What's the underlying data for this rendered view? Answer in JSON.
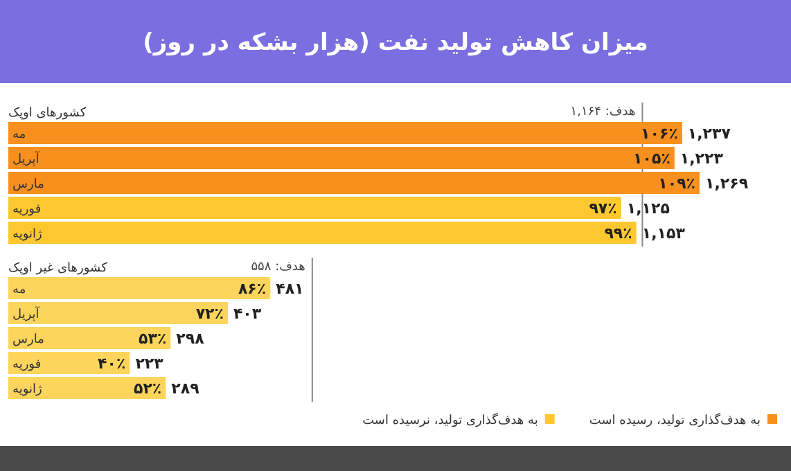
{
  "chart_data": [
    {
      "type": "bar",
      "orientation": "horizontal",
      "title": "میزان کاهش تولید نفت (هزار بشکه در روز)",
      "subtitle": "کشورهای اوپک",
      "categories": [
        "مه",
        "آپریل",
        "مارس",
        "فوریه",
        "ژانویه"
      ],
      "series": [
        {
          "name": "به هدف‌گذاری تولید، رسیده است",
          "color": "#f7901e",
          "values": [
            1237,
            1223,
            1269,
            null,
            null
          ],
          "value_labels": [
            "۱,۲۳۷",
            "۱,۲۲۳",
            "۱,۲۶۹",
            null,
            null
          ]
        },
        {
          "name": "به هدف‌گذاری تولید، نرسیده است",
          "color": "#fdc82f",
          "values": [
            null,
            null,
            null,
            1125,
            1153
          ],
          "value_labels": [
            null,
            null,
            null,
            "۱,۱۲۵",
            "۱,۱۵۳"
          ]
        }
      ],
      "legend": "bottom",
      "ref_lines": [
        {
          "axis": "x",
          "value": 1164,
          "label": "هدف: ۱,۱۶۴",
          "color": "#888888"
        }
      ],
      "annotations": [
        {
          "text": "۱۰۶٪",
          "x": 1237,
          "y": "مه"
        },
        {
          "text": "۱۰۵٪",
          "x": 1223,
          "y": "آپریل"
        },
        {
          "text": "۱۰۹٪",
          "x": 1269,
          "y": "مارس"
        },
        {
          "text": "۹۷٪",
          "x": 1125,
          "y": "فوریه"
        },
        {
          "text": "۹۹٪",
          "x": 1153,
          "y": "ژانویه"
        }
      ]
    },
    {
      "type": "bar",
      "orientation": "horizontal",
      "subtitle": "کشورهای غیر اوپک",
      "categories": [
        "مه",
        "آپریل",
        "مارس",
        "فوریه",
        "ژانویه"
      ],
      "series": [
        {
          "color": "#fdd55c",
          "values": [
            481,
            403,
            298,
            223,
            289
          ],
          "value_labels": [
            "۴۸۱",
            "۴۰۳",
            "۲۹۸",
            "۲۲۳",
            "۲۸۹"
          ]
        }
      ],
      "ref_lines": [
        {
          "axis": "x",
          "value": 558,
          "label": "هدف: ۵۵۸",
          "color": "#888888"
        }
      ],
      "annotations": [
        {
          "text": "۸۶٪",
          "x": 481,
          "y": "مه"
        },
        {
          "text": "۷۲٪",
          "x": 403,
          "y": "آپریل"
        },
        {
          "text": "۵۳٪",
          "x": 298,
          "y": "مارس"
        },
        {
          "text": "۴۰٪",
          "x": 223,
          "y": "فوریه"
        },
        {
          "text": "۵۲٪",
          "x": 289,
          "y": "ژانویه"
        }
      ]
    }
  ]
}
